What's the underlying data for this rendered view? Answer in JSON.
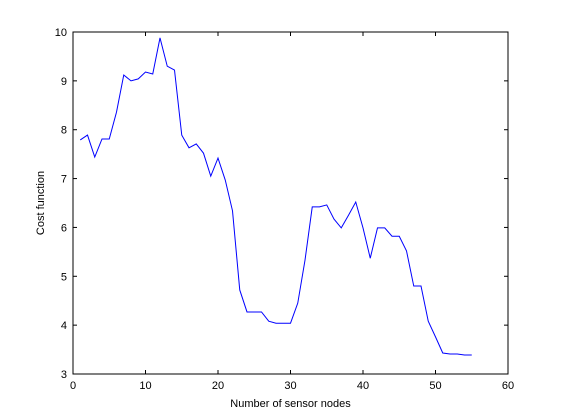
{
  "chart_data": {
    "type": "line",
    "xlabel": "Number of sensor nodes",
    "ylabel": "Cost function",
    "x": [
      1,
      2,
      3,
      4,
      5,
      6,
      7,
      8,
      9,
      10,
      11,
      12,
      13,
      14,
      15,
      16,
      17,
      18,
      19,
      20,
      21,
      22,
      23,
      24,
      25,
      26,
      27,
      28,
      29,
      30,
      31,
      32,
      33,
      34,
      35,
      36,
      37,
      38,
      39,
      40,
      41,
      42,
      43,
      44,
      45,
      46,
      47,
      48,
      49,
      50,
      51,
      52,
      53,
      54,
      55
    ],
    "series": [
      {
        "color": "#0000ff",
        "values": [
          7.79,
          7.89,
          7.44,
          7.81,
          7.81,
          8.36,
          9.12,
          9.0,
          9.04,
          9.18,
          9.14,
          9.88,
          9.3,
          9.22,
          7.89,
          7.63,
          7.71,
          7.52,
          7.05,
          7.42,
          6.97,
          6.34,
          4.72,
          4.27,
          4.27,
          4.27,
          4.08,
          4.04,
          4.04,
          4.04,
          4.45,
          5.33,
          6.42,
          6.42,
          6.46,
          6.17,
          5.99,
          6.25,
          6.52,
          5.99,
          5.37,
          5.99,
          5.99,
          5.82,
          5.82,
          5.52,
          4.8,
          4.8,
          4.08,
          3.76,
          3.43,
          3.41,
          3.41,
          3.39,
          3.39
        ]
      }
    ],
    "xlim": [
      0,
      60
    ],
    "xticks": [
      0,
      10,
      20,
      30,
      40,
      50,
      60
    ],
    "ylim": [
      3,
      10
    ],
    "yticks": [
      3,
      4,
      5,
      6,
      7,
      8,
      9,
      10
    ],
    "grid": false
  }
}
